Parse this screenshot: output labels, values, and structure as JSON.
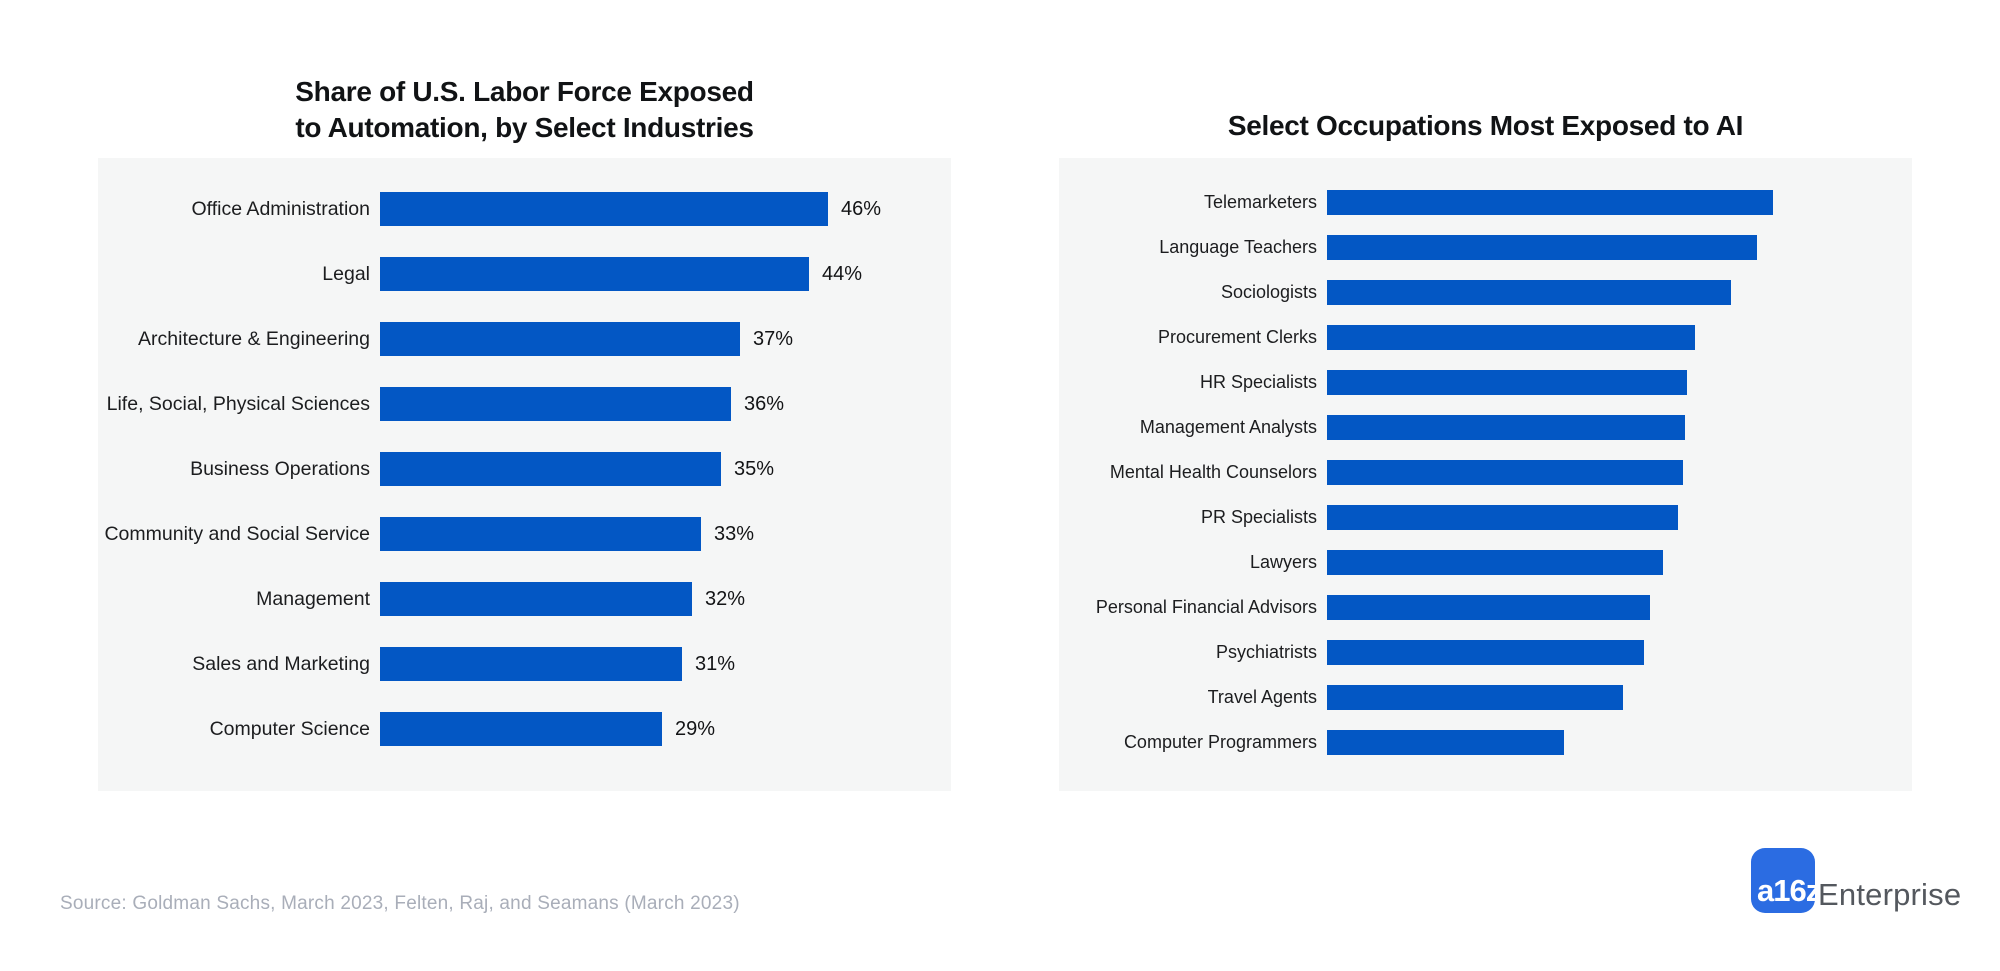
{
  "colors": {
    "bar_blue": "#0357c4",
    "panel_background": "#f5f6f6",
    "page_background": "#ffffff",
    "title_text": "#111315",
    "axis_label_text": "#1c1d1f",
    "source_text": "#a9aeb9",
    "logo_blue": "#2b6ce2",
    "logo_wordmark_text": "#54585e"
  },
  "left_chart": {
    "title": "Share of U.S. Labor Force Exposed\nto Automation, by Select Industries"
  },
  "right_chart": {
    "title": "Select Occupations Most Exposed to AI"
  },
  "chart_data": [
    {
      "type": "bar",
      "orientation": "horizontal",
      "title": "Share of U.S. Labor Force Exposed to Automation, by Select Industries",
      "categories": [
        "Office Administration",
        "Legal",
        "Architecture & Engineering",
        "Life, Social, Physical Sciences",
        "Business Operations",
        "Community and Social Service",
        "Management",
        "Sales and Marketing",
        "Computer Science"
      ],
      "values": [
        46,
        44,
        37,
        36,
        35,
        33,
        32,
        31,
        29
      ],
      "unit": "%",
      "value_labels": [
        "46%",
        "44%",
        "37%",
        "36%",
        "35%",
        "33%",
        "32%",
        "31%",
        "29%"
      ],
      "value_labels_shown": true,
      "grid": false,
      "legend": false,
      "bar_color": "#0357c4"
    },
    {
      "type": "bar",
      "orientation": "horizontal",
      "title": "Select Occupations Most Exposed to AI",
      "categories": [
        "Telemarketers",
        "Language Teachers",
        "Sociologists",
        "Procurement Clerks",
        "HR Specialists",
        "Management Analysts",
        "Mental Health Counselors",
        "PR Specialists",
        "Lawyers",
        "Personal Financial Advisors",
        "Psychiatrists",
        "Travel Agents",
        "Computer Programmers"
      ],
      "values_relative_estimated": [
        1.0,
        0.964,
        0.906,
        0.825,
        0.807,
        0.803,
        0.798,
        0.787,
        0.753,
        0.724,
        0.711,
        0.664,
        0.531
      ],
      "value_labels_shown": false,
      "grid": false,
      "legend": false,
      "bar_color": "#0357c4"
    }
  ],
  "footer": {
    "source": "Source: Goldman Sachs, March 2023, Felten, Raj, and Seamans (March 2023)",
    "logo": {
      "mark_text": "a16z",
      "wordmark": "Enterprise"
    }
  }
}
